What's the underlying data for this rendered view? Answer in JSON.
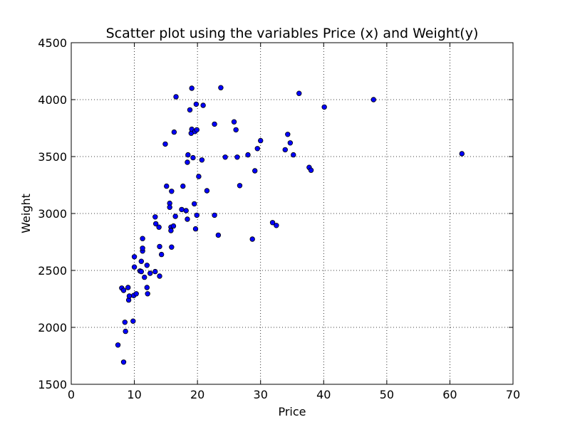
{
  "chart_data": {
    "type": "scatter",
    "title": "Scatter plot using the variables Price (x) and Weight(y)",
    "xlabel": "Price",
    "ylabel": "Weight",
    "xlim": [
      0,
      70
    ],
    "ylim": [
      1500,
      4500
    ],
    "xticks": [
      0,
      10,
      20,
      30,
      40,
      50,
      60,
      70
    ],
    "yticks": [
      1500,
      2000,
      2500,
      3000,
      3500,
      4000,
      4500
    ],
    "grid": true,
    "marker_color": "#0000ff",
    "marker_edge": "#000000",
    "points": [
      [
        7.4,
        1845
      ],
      [
        8.3,
        1695
      ],
      [
        8.5,
        2045
      ],
      [
        8.6,
        1965
      ],
      [
        8.0,
        2345
      ],
      [
        8.3,
        2325
      ],
      [
        9.0,
        2350
      ],
      [
        9.1,
        2240
      ],
      [
        9.2,
        2275
      ],
      [
        9.8,
        2055
      ],
      [
        9.9,
        2280
      ],
      [
        10.3,
        2295
      ],
      [
        10.0,
        2620
      ],
      [
        10.0,
        2530
      ],
      [
        10.9,
        2495
      ],
      [
        11.1,
        2490
      ],
      [
        11.1,
        2580
      ],
      [
        11.3,
        2670
      ],
      [
        11.3,
        2695
      ],
      [
        11.3,
        2780
      ],
      [
        11.6,
        2440
      ],
      [
        12.0,
        2350
      ],
      [
        12.0,
        2545
      ],
      [
        12.1,
        2295
      ],
      [
        12.5,
        2475
      ],
      [
        13.3,
        2490
      ],
      [
        13.3,
        2970
      ],
      [
        13.4,
        2910
      ],
      [
        13.9,
        2880
      ],
      [
        14.0,
        2710
      ],
      [
        14.0,
        2450
      ],
      [
        14.3,
        2640
      ],
      [
        14.9,
        3610
      ],
      [
        15.1,
        3240
      ],
      [
        15.6,
        3090
      ],
      [
        15.6,
        3055
      ],
      [
        15.8,
        2880
      ],
      [
        15.8,
        2850
      ],
      [
        15.9,
        2705
      ],
      [
        15.9,
        3195
      ],
      [
        16.2,
        2890
      ],
      [
        16.3,
        3715
      ],
      [
        16.5,
        2975
      ],
      [
        16.6,
        4025
      ],
      [
        17.5,
        3035
      ],
      [
        17.7,
        3240
      ],
      [
        18.2,
        3025
      ],
      [
        18.4,
        2950
      ],
      [
        18.4,
        3450
      ],
      [
        18.5,
        3515
      ],
      [
        18.8,
        3910
      ],
      [
        19.0,
        3705
      ],
      [
        19.1,
        3740
      ],
      [
        19.1,
        4100
      ],
      [
        19.3,
        3490
      ],
      [
        19.5,
        3085
      ],
      [
        19.6,
        3720
      ],
      [
        19.7,
        2865
      ],
      [
        19.8,
        3960
      ],
      [
        19.9,
        3735
      ],
      [
        19.9,
        2985
      ],
      [
        20.2,
        3325
      ],
      [
        20.7,
        3470
      ],
      [
        20.9,
        3950
      ],
      [
        21.5,
        3200
      ],
      [
        22.7,
        2985
      ],
      [
        22.7,
        3785
      ],
      [
        23.3,
        2810
      ],
      [
        23.7,
        4105
      ],
      [
        24.4,
        3495
      ],
      [
        25.8,
        3805
      ],
      [
        26.1,
        3735
      ],
      [
        26.3,
        3495
      ],
      [
        26.7,
        3245
      ],
      [
        28.0,
        3515
      ],
      [
        28.7,
        2775
      ],
      [
        29.1,
        3375
      ],
      [
        29.5,
        3570
      ],
      [
        30.0,
        3640
      ],
      [
        31.9,
        2920
      ],
      [
        32.5,
        2895
      ],
      [
        33.9,
        3560
      ],
      [
        34.3,
        3695
      ],
      [
        34.7,
        3620
      ],
      [
        35.2,
        3515
      ],
      [
        36.1,
        4055
      ],
      [
        37.7,
        3405
      ],
      [
        38.0,
        3380
      ],
      [
        40.1,
        3935
      ],
      [
        47.9,
        4000
      ],
      [
        61.9,
        3525
      ]
    ]
  }
}
